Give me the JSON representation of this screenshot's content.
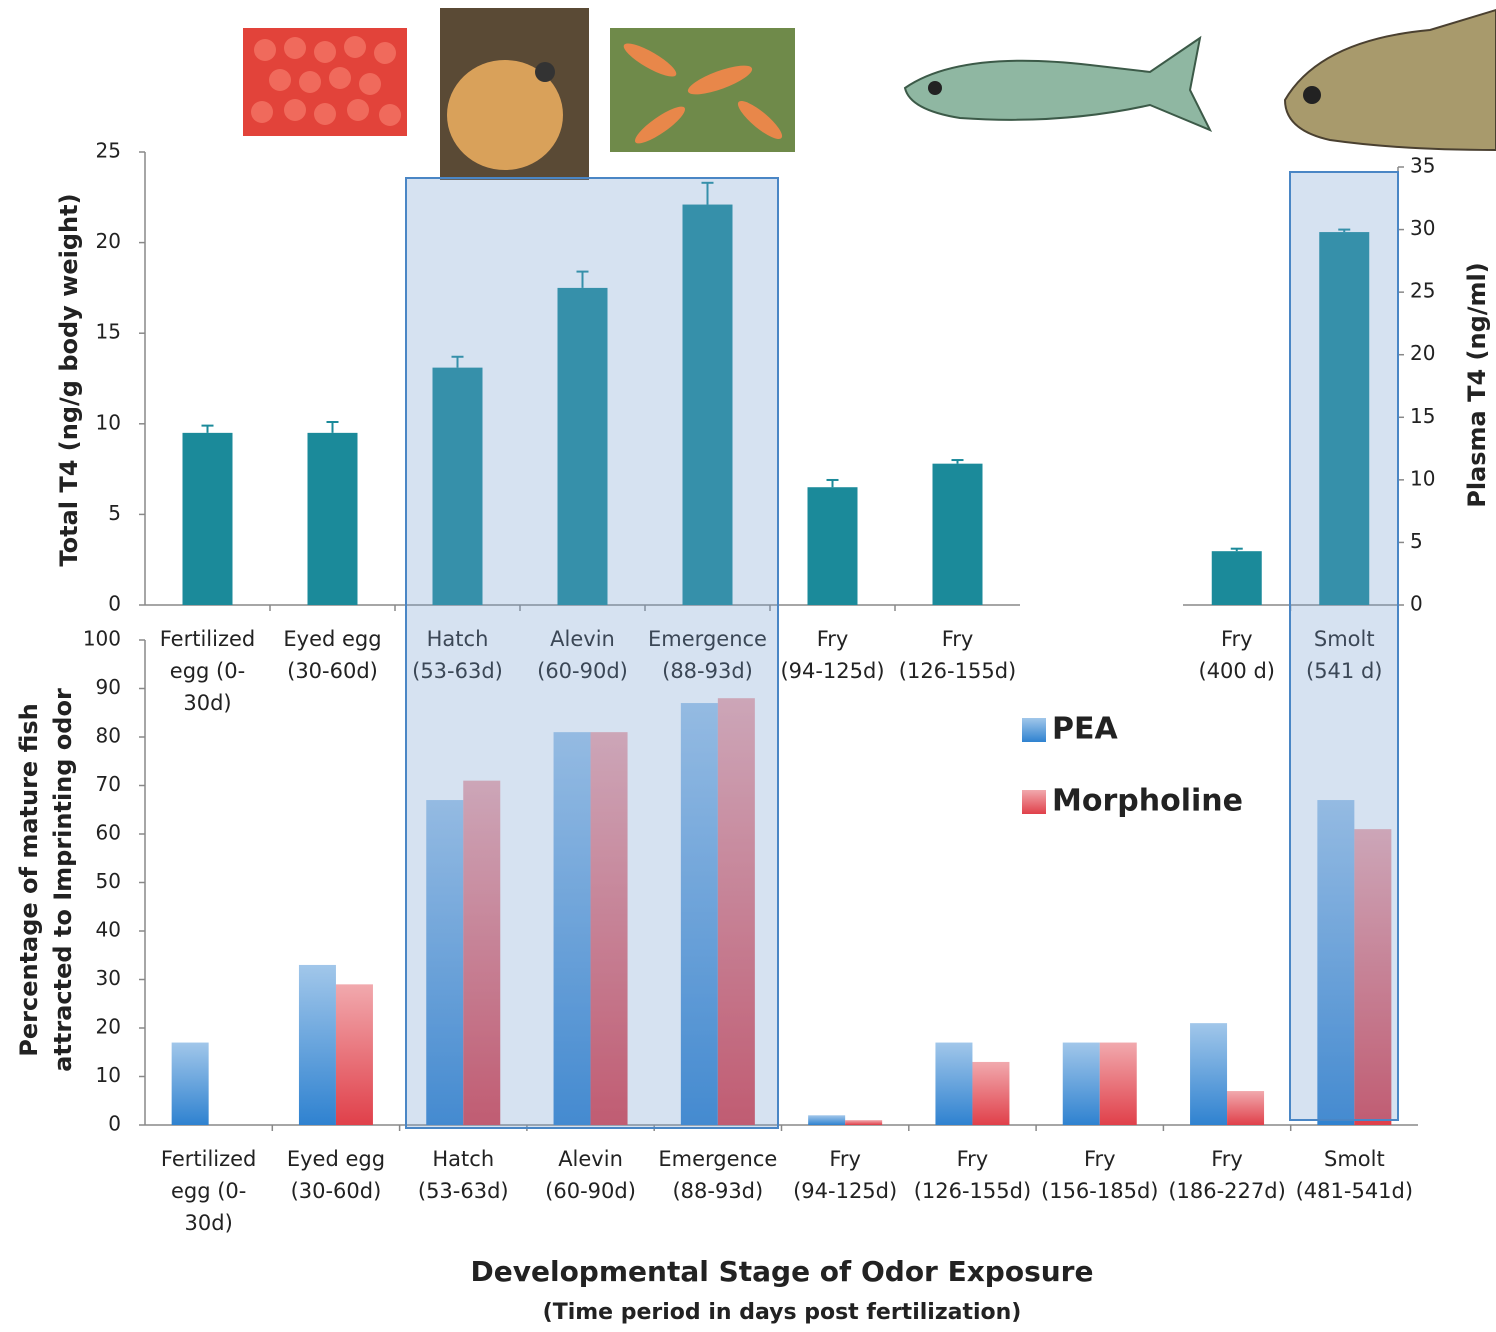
{
  "chart_data": [
    {
      "type": "bar",
      "ylabel": "Total T4  (ng/g body weight)",
      "y2label": "Plasma T4  (ng/ml)",
      "categories": [
        [
          "Fertilized",
          "egg  (0-",
          "30d)"
        ],
        [
          "Eyed egg",
          "(30-60d)"
        ],
        [
          "Hatch",
          "(53-63d)"
        ],
        [
          "Alevin",
          "(60-90d)"
        ],
        [
          "Emergence",
          "(88-93d)"
        ],
        [
          "Fry",
          "(94-125d)"
        ],
        [
          "Fry",
          "(126-155d)"
        ],
        [
          "Fry",
          "(400 d)"
        ],
        [
          "Smolt",
          "(541 d)"
        ]
      ],
      "series": [
        {
          "color": "#1b8a9a",
          "values": [
            9.5,
            9.5,
            13.1,
            17.5,
            22.1,
            6.5,
            7.8,
            null,
            null
          ],
          "errors": [
            0.4,
            0.6,
            0.6,
            0.9,
            1.2,
            0.4,
            0.2,
            null,
            null
          ]
        },
        {
          "color": "#1b8a9a",
          "axis": "y2",
          "values": [
            null,
            null,
            null,
            null,
            null,
            null,
            null,
            4.3,
            29.8
          ],
          "errors": [
            null,
            null,
            null,
            null,
            null,
            null,
            null,
            0.2,
            0.2
          ]
        }
      ],
      "ylim": [
        0,
        25
      ],
      "yticks": [
        0,
        5,
        10,
        15,
        20,
        25
      ],
      "y2lim": [
        0,
        35
      ],
      "y2ticks": [
        0,
        5,
        10,
        15,
        20,
        25,
        30,
        35
      ]
    },
    {
      "type": "bar",
      "ylabel": [
        "Percentage of mature fish",
        "attracted to Imprinting odor"
      ],
      "xlabel": "Developmental Stage of Odor Exposure",
      "subtitle": "(Time period in days post fertilization)",
      "categories": [
        [
          "Fertilized",
          "egg  (0-",
          "30d)"
        ],
        [
          "Eyed egg",
          "(30-60d)"
        ],
        [
          "Hatch",
          "(53-63d)"
        ],
        [
          "Alevin",
          "(60-90d)"
        ],
        [
          "Emergence",
          "(88-93d)"
        ],
        [
          "Fry",
          "(94-125d)"
        ],
        [
          "Fry",
          "(126-155d)"
        ],
        [
          "Fry",
          "(156-185d)"
        ],
        [
          "Fry",
          "(186-227d)"
        ],
        [
          "Smolt",
          "(481-541d)"
        ]
      ],
      "series": [
        {
          "name": "PEA",
          "color": "#2f82d0",
          "values": [
            17,
            33,
            67,
            81,
            87,
            2,
            17,
            17,
            21,
            67
          ]
        },
        {
          "name": "Morpholine",
          "color": "#e0404a",
          "values": [
            0,
            29,
            71,
            81,
            88,
            1,
            13,
            17,
            7,
            61
          ]
        }
      ],
      "ylim": [
        0,
        100
      ],
      "yticks": [
        0,
        10,
        20,
        30,
        40,
        50,
        60,
        70,
        80,
        90,
        100
      ],
      "legend": "right"
    }
  ]
}
